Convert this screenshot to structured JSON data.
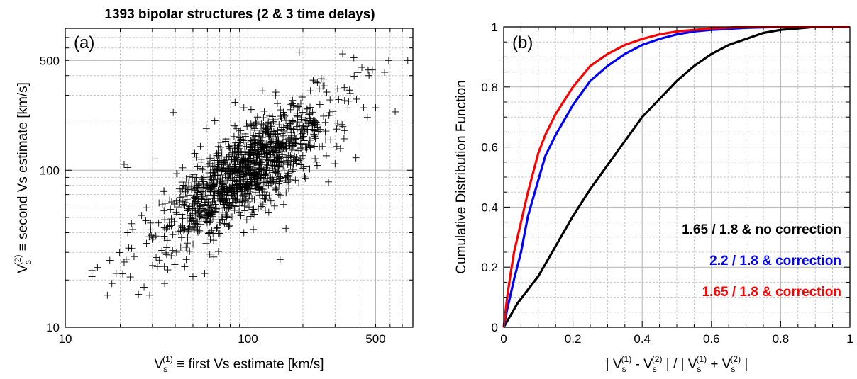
{
  "figure": {
    "title": "1393 bipolar structures (2 & 3 time delays)"
  },
  "chart_data": [
    {
      "type": "scatter",
      "panel_label": "(a)",
      "xlabel_parts": [
        "V",
        "s",
        "(1)",
        "  ≡  first Vs estimate [km/s]"
      ],
      "ylabel_parts": [
        "V",
        "s",
        "(2)",
        " ≡ second Vs estimate [km/s]"
      ],
      "xscale": "log",
      "yscale": "log",
      "xlim": [
        10,
        800
      ],
      "ylim": [
        10,
        800
      ],
      "xticks": [
        {
          "value": 10,
          "label": "10"
        },
        {
          "value": 100,
          "label": "100"
        },
        {
          "value": 500,
          "label": "500"
        }
      ],
      "yticks": [
        {
          "value": 10,
          "label": "10"
        },
        {
          "value": 100,
          "label": "100"
        },
        {
          "value": 500,
          "label": "500"
        }
      ],
      "grid": true,
      "marker": "plus",
      "point_count": 1393,
      "distribution": {
        "log_center": [
          1.98,
          1.98
        ],
        "log_sigma_major": 0.3,
        "log_sigma_minor": 0.11,
        "angle_deg": 45,
        "log_xmin": 1.12,
        "log_xmax": 2.88,
        "log_ymin": 1.18,
        "log_ymax": 2.78
      },
      "points": [
        [
          14,
          21
        ],
        [
          14,
          23
        ],
        [
          15,
          24
        ],
        [
          17,
          16
        ],
        [
          18,
          19
        ],
        [
          19,
          22
        ],
        [
          21,
          26
        ],
        [
          21,
          109
        ],
        [
          22,
          104
        ],
        [
          22,
          40
        ],
        [
          25,
          60
        ],
        [
          27,
          18
        ],
        [
          29,
          16
        ],
        [
          31,
          118
        ],
        [
          35,
          19
        ],
        [
          39,
          233
        ],
        [
          46,
          27
        ],
        [
          50,
          21
        ],
        [
          58,
          22
        ],
        [
          65,
          28
        ],
        [
          95,
          40
        ],
        [
          107,
          42
        ],
        [
          110,
          130
        ],
        [
          130,
          54
        ],
        [
          150,
          27
        ],
        [
          182,
          148
        ],
        [
          230,
          178
        ],
        [
          240,
          360
        ],
        [
          300,
          110
        ],
        [
          330,
          550
        ],
        [
          390,
          120
        ],
        [
          430,
          250
        ],
        [
          460,
          400
        ],
        [
          480,
          435
        ],
        [
          500,
          250
        ],
        [
          560,
          420
        ],
        [
          590,
          500
        ],
        [
          640,
          235
        ],
        [
          750,
          500
        ],
        [
          380,
          520
        ],
        [
          260,
          380
        ],
        [
          310,
          330
        ],
        [
          220,
          320
        ],
        [
          120,
          320
        ],
        [
          85,
          270
        ],
        [
          95,
          250
        ]
      ]
    },
    {
      "type": "line",
      "panel_label": "(b)",
      "xlabel": "| V$s^(1) - V$s^(2) |  /  | V$s^(1) + V$s^(2) |",
      "ylabel": "Cumulative Distribution Function",
      "xlim": [
        0,
        1
      ],
      "ylim": [
        0,
        1
      ],
      "xticks": [
        {
          "value": 0,
          "label": "0"
        },
        {
          "value": 0.2,
          "label": "0.2"
        },
        {
          "value": 0.4,
          "label": "0.4"
        },
        {
          "value": 0.6,
          "label": "0.6"
        },
        {
          "value": 0.8,
          "label": "0.8"
        },
        {
          "value": 1,
          "label": "1"
        }
      ],
      "yticks": [
        {
          "value": 0,
          "label": "0"
        },
        {
          "value": 0.2,
          "label": "0.2"
        },
        {
          "value": 0.4,
          "label": "0.4"
        },
        {
          "value": 0.6,
          "label": "0.6"
        },
        {
          "value": 0.8,
          "label": "0.8"
        },
        {
          "value": 1,
          "label": "1"
        }
      ],
      "grid": true,
      "legend_position": "lower-right",
      "series": [
        {
          "name": "1.65 / 1.8 & no correction",
          "color": "#000000",
          "x": [
            0,
            0.01,
            0.02,
            0.04,
            0.06,
            0.08,
            0.1,
            0.12,
            0.15,
            0.2,
            0.25,
            0.3,
            0.35,
            0.4,
            0.45,
            0.5,
            0.55,
            0.6,
            0.65,
            0.7,
            0.75,
            0.8,
            0.85,
            0.9,
            1.0
          ],
          "y": [
            0,
            0.02,
            0.04,
            0.08,
            0.11,
            0.14,
            0.17,
            0.21,
            0.27,
            0.37,
            0.46,
            0.54,
            0.62,
            0.7,
            0.76,
            0.82,
            0.87,
            0.91,
            0.94,
            0.96,
            0.98,
            0.99,
            0.995,
            1.0,
            1.0
          ]
        },
        {
          "name": "2.2 / 1.8  &   correction",
          "color": "#0000ff",
          "x": [
            0,
            0.01,
            0.02,
            0.03,
            0.05,
            0.07,
            0.1,
            0.12,
            0.15,
            0.2,
            0.25,
            0.3,
            0.35,
            0.4,
            0.45,
            0.5,
            0.55,
            0.6,
            0.7,
            0.8,
            1.0
          ],
          "y": [
            0,
            0.06,
            0.11,
            0.16,
            0.25,
            0.37,
            0.49,
            0.57,
            0.64,
            0.74,
            0.82,
            0.87,
            0.91,
            0.94,
            0.96,
            0.975,
            0.985,
            0.99,
            0.997,
            1.0,
            1.0
          ]
        },
        {
          "name": "1.65 / 1.8 &   correction",
          "color": "#ff0000",
          "x": [
            0,
            0.01,
            0.02,
            0.03,
            0.05,
            0.07,
            0.1,
            0.12,
            0.15,
            0.2,
            0.25,
            0.3,
            0.35,
            0.4,
            0.45,
            0.5,
            0.55,
            0.6,
            0.7,
            0.8,
            1.0
          ],
          "y": [
            0,
            0.1,
            0.18,
            0.25,
            0.35,
            0.45,
            0.58,
            0.64,
            0.71,
            0.8,
            0.87,
            0.91,
            0.94,
            0.96,
            0.975,
            0.985,
            0.99,
            0.995,
            1.0,
            1.0,
            1.0
          ]
        }
      ]
    }
  ]
}
